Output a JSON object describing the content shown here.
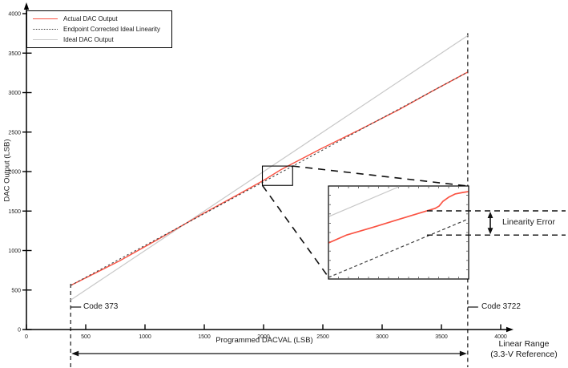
{
  "chart_data": {
    "type": "line",
    "title": "",
    "xlabel": "Programmed DACVAL (LSB)",
    "ylabel": "DAC Output (LSB)",
    "xlim": [
      0,
      4000
    ],
    "ylim": [
      0,
      4000
    ],
    "grid": false,
    "x_ticks": [
      0,
      500,
      1000,
      1500,
      2000,
      2500,
      3000,
      3500,
      4000
    ],
    "y_ticks": [
      0,
      500,
      1000,
      1500,
      2000,
      2500,
      3000,
      3500,
      4000
    ],
    "legend": {
      "position": "top-left",
      "items": [
        {
          "label": "Actual DAC Output",
          "color": "#fa5343",
          "style": "solid"
        },
        {
          "label": "Endpoint Corrected Ideal Linearity",
          "color": "#3d3d3d",
          "style": "dashed"
        },
        {
          "label": "Ideal DAC Output",
          "color": "#c8c8c8",
          "style": "solid"
        }
      ]
    },
    "series": [
      {
        "name": "Actual DAC Output",
        "style": "solid",
        "color": "#fa5343",
        "points": [
          [
            373,
            558
          ],
          [
            790,
            873
          ],
          [
            1128,
            1157
          ],
          [
            1486,
            1465
          ],
          [
            1804,
            1725
          ],
          [
            2007,
            1895
          ],
          [
            2142,
            2020
          ],
          [
            2243,
            2100
          ],
          [
            2480,
            2285
          ],
          [
            2818,
            2535
          ],
          [
            3155,
            2795
          ],
          [
            3425,
            3020
          ],
          [
            3722,
            3260
          ]
        ]
      },
      {
        "name": "Endpoint Corrected Ideal Linearity",
        "style": "dashed",
        "color": "#3d3d3d",
        "points": [
          [
            373,
            558
          ],
          [
            3722,
            3260
          ]
        ]
      },
      {
        "name": "Ideal DAC Output",
        "style": "solid",
        "color": "#c8c8c8",
        "points": [
          [
            373,
            373
          ],
          [
            3722,
            3722
          ]
        ]
      }
    ],
    "annotations": {
      "code_min": 373,
      "code_max": 3722,
      "zoom_region": {
        "x": [
          1990,
          2245
        ],
        "y": [
          1825,
          2070
        ]
      }
    },
    "inset": {
      "description": "schematic magnified view of zoom_region showing linearity error",
      "lines": [
        {
          "name": "Ideal DAC Output",
          "style": "solid",
          "color": "#c8c8c8",
          "points_norm": [
            [
              0,
              0.33
            ],
            [
              0.515,
              0
            ]
          ]
        },
        {
          "name": "Actual DAC Output",
          "style": "solid",
          "color": "#fa5343",
          "points_norm": [
            [
              0,
              0.612
            ],
            [
              0.131,
              0.526
            ],
            [
              0.326,
              0.44
            ],
            [
              0.514,
              0.353
            ],
            [
              0.703,
              0.267
            ],
            [
              0.76,
              0.241
            ],
            [
              0.789,
              0.216
            ],
            [
              0.817,
              0.164
            ],
            [
              0.857,
              0.121
            ],
            [
              0.903,
              0.086
            ],
            [
              0.96,
              0.069
            ],
            [
              1,
              0.06
            ]
          ]
        },
        {
          "name": "Endpoint Corrected Ideal Linearity",
          "style": "dashed",
          "color": "#3d3d3d",
          "points_norm": [
            [
              0,
              0.983
            ],
            [
              1,
              0.353
            ]
          ]
        }
      ]
    }
  },
  "labels": {
    "code_min": "Code 373",
    "code_max": "Code 3722",
    "linearity_error": "Linearity Error",
    "linear_range_1": "Linear Range",
    "linear_range_2": "(3.3-V Reference)"
  }
}
